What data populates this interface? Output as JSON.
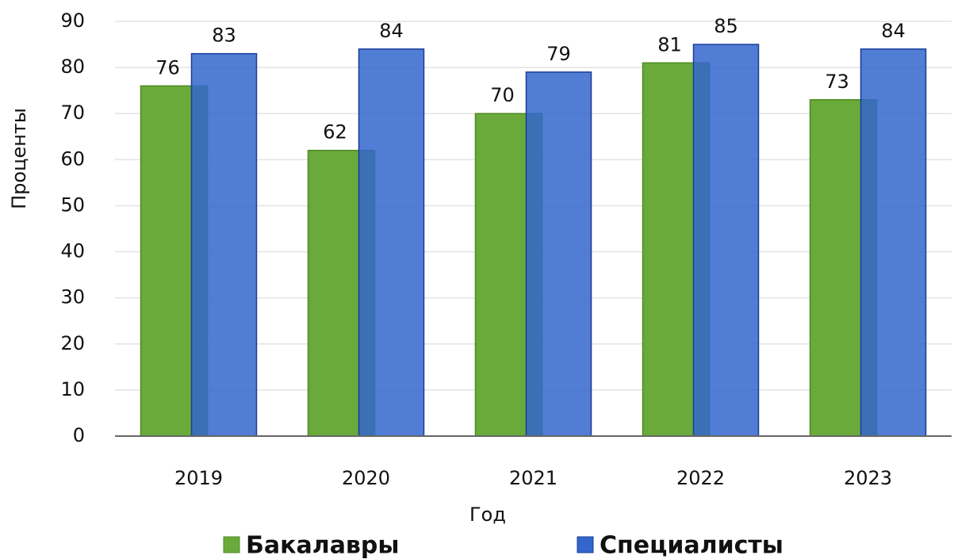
{
  "chart_data": {
    "type": "bar",
    "categories": [
      "2019",
      "2020",
      "2021",
      "2022",
      "2023"
    ],
    "series": [
      {
        "name": "Бакалавры",
        "color": "#6aaa3a",
        "values": [
          76,
          62,
          70,
          81,
          73
        ]
      },
      {
        "name": "Специалисты",
        "color": "#3366cc",
        "values": [
          83,
          84,
          79,
          85,
          84
        ]
      }
    ],
    "xlabel": "Год",
    "ylabel": "Проценты",
    "ylim": [
      0,
      90
    ],
    "yticks": [
      0,
      10,
      20,
      30,
      40,
      50,
      60,
      70,
      80,
      90
    ],
    "grid": true,
    "legend": "bottom"
  }
}
